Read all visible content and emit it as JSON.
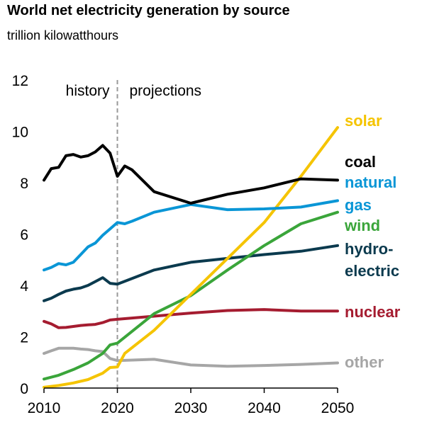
{
  "chart_data": {
    "type": "line",
    "title": "World net electricity generation by source",
    "subtitle": "trillion kilowatthours",
    "xlabel": "",
    "ylabel": "",
    "xlim": [
      2010,
      2050
    ],
    "ylim": [
      0,
      12
    ],
    "x_ticks": [
      "2010",
      "2020",
      "2030",
      "2040",
      "2050"
    ],
    "y_ticks": [
      "0",
      "2",
      "4",
      "6",
      "8",
      "10",
      "12"
    ],
    "annotations": {
      "history": "history",
      "projections": "projections",
      "divider_year": 2020
    },
    "grid": false,
    "legend": "right-side labels",
    "series": [
      {
        "name": "other",
        "label_lines": [
          "other"
        ],
        "color": "#a6a6a6",
        "x": [
          2010,
          2011,
          2012,
          2013,
          2014,
          2015,
          2016,
          2017,
          2018,
          2019,
          2020,
          2025,
          2030,
          2035,
          2040,
          2045,
          2050
        ],
        "values": [
          1.35,
          1.45,
          1.55,
          1.55,
          1.55,
          1.52,
          1.5,
          1.45,
          1.42,
          1.15,
          1.07,
          1.12,
          0.9,
          0.85,
          0.88,
          0.92,
          0.98
        ]
      },
      {
        "name": "nuclear",
        "label_lines": [
          "nuclear"
        ],
        "color": "#a51c30",
        "x": [
          2010,
          2011,
          2012,
          2013,
          2014,
          2015,
          2016,
          2017,
          2018,
          2019,
          2020,
          2025,
          2030,
          2035,
          2040,
          2045,
          2050
        ],
        "values": [
          2.6,
          2.5,
          2.35,
          2.36,
          2.4,
          2.44,
          2.46,
          2.48,
          2.55,
          2.65,
          2.68,
          2.8,
          2.92,
          3.02,
          3.06,
          3.0,
          3.0
        ]
      },
      {
        "name": "hydro-electric",
        "label_lines": [
          "hydro-",
          "electric"
        ],
        "color": "#0b3a4e",
        "x": [
          2010,
          2011,
          2012,
          2013,
          2014,
          2015,
          2016,
          2017,
          2018,
          2019,
          2020,
          2025,
          2030,
          2035,
          2040,
          2045,
          2050
        ],
        "values": [
          3.4,
          3.5,
          3.65,
          3.78,
          3.85,
          3.9,
          4.0,
          4.15,
          4.3,
          4.08,
          4.05,
          4.6,
          4.9,
          5.05,
          5.2,
          5.33,
          5.55
        ]
      },
      {
        "name": "wind",
        "label_lines": [
          "wind"
        ],
        "color": "#3aa53a",
        "x": [
          2010,
          2012,
          2014,
          2016,
          2018,
          2019,
          2020,
          2025,
          2030,
          2035,
          2040,
          2045,
          2050
        ],
        "values": [
          0.35,
          0.5,
          0.72,
          0.98,
          1.35,
          1.68,
          1.75,
          2.9,
          3.6,
          4.6,
          5.55,
          6.4,
          6.85
        ]
      },
      {
        "name": "solar",
        "label_lines": [
          "solar"
        ],
        "color": "#f5c400",
        "x": [
          2010,
          2012,
          2014,
          2016,
          2018,
          2019,
          2020,
          2021,
          2025,
          2030,
          2035,
          2040,
          2045,
          2050
        ],
        "values": [
          0.03,
          0.1,
          0.2,
          0.33,
          0.58,
          0.8,
          0.82,
          1.35,
          2.25,
          3.65,
          5.05,
          6.45,
          8.25,
          10.15
        ]
      },
      {
        "name": "natural gas",
        "label_lines": [
          "natural",
          "gas"
        ],
        "color": "#0a96d6",
        "x": [
          2010,
          2011,
          2012,
          2013,
          2014,
          2015,
          2016,
          2017,
          2018,
          2019,
          2020,
          2021,
          2022,
          2025,
          2030,
          2035,
          2040,
          2045,
          2050
        ],
        "values": [
          4.6,
          4.7,
          4.85,
          4.8,
          4.9,
          5.2,
          5.5,
          5.65,
          5.95,
          6.2,
          6.45,
          6.4,
          6.5,
          6.85,
          7.15,
          6.95,
          6.98,
          7.05,
          7.3
        ]
      },
      {
        "name": "coal",
        "label_lines": [
          "coal"
        ],
        "color": "#000000",
        "x": [
          2010,
          2011,
          2012,
          2013,
          2014,
          2015,
          2016,
          2017,
          2018,
          2019,
          2020,
          2021,
          2022,
          2025,
          2030,
          2035,
          2040,
          2045,
          2050
        ],
        "values": [
          8.1,
          8.55,
          8.6,
          9.05,
          9.1,
          9.0,
          9.05,
          9.2,
          9.45,
          9.15,
          8.25,
          8.65,
          8.5,
          7.65,
          7.2,
          7.55,
          7.8,
          8.15,
          8.1
        ]
      }
    ]
  }
}
